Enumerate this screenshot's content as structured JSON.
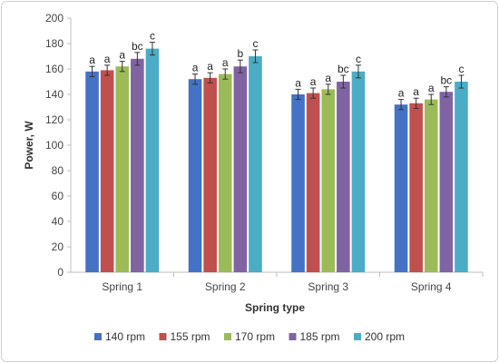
{
  "chart_data": {
    "type": "bar",
    "title": "",
    "xlabel": "Spring type",
    "ylabel": "Power, W",
    "ylim": [
      0,
      200
    ],
    "yticks": [
      0,
      20,
      40,
      60,
      80,
      100,
      120,
      140,
      160,
      180,
      200
    ],
    "grid": false,
    "legend_position": "bottom",
    "categories": [
      "Spring 1",
      "Spring 2",
      "Spring 3",
      "Spring 4"
    ],
    "series": [
      {
        "name": "140 rpm",
        "color": "#4472c4",
        "values": [
          158,
          152,
          140,
          132
        ],
        "errors": [
          4,
          4,
          4,
          4
        ],
        "labels": [
          "a",
          "a",
          "a",
          "a"
        ]
      },
      {
        "name": "155 rpm",
        "color": "#c0504d",
        "values": [
          159,
          153,
          141,
          133
        ],
        "errors": [
          4,
          4,
          4,
          4
        ],
        "labels": [
          "a",
          "a",
          "a",
          "a"
        ]
      },
      {
        "name": "170 rpm",
        "color": "#9bbb59",
        "values": [
          162,
          156,
          144,
          136
        ],
        "errors": [
          4,
          4,
          4,
          4
        ],
        "labels": [
          "a",
          "a",
          "a",
          "a"
        ]
      },
      {
        "name": "185 rpm",
        "color": "#8064a2",
        "values": [
          168,
          162,
          150,
          142
        ],
        "errors": [
          5,
          5,
          5,
          4
        ],
        "labels": [
          "bc",
          "b",
          "bc",
          "bc"
        ]
      },
      {
        "name": "200 rpm",
        "color": "#4bacc6",
        "values": [
          176,
          170,
          158,
          150
        ],
        "errors": [
          5,
          5,
          5,
          5
        ],
        "labels": [
          "c",
          "c",
          "c",
          "c"
        ]
      }
    ]
  }
}
